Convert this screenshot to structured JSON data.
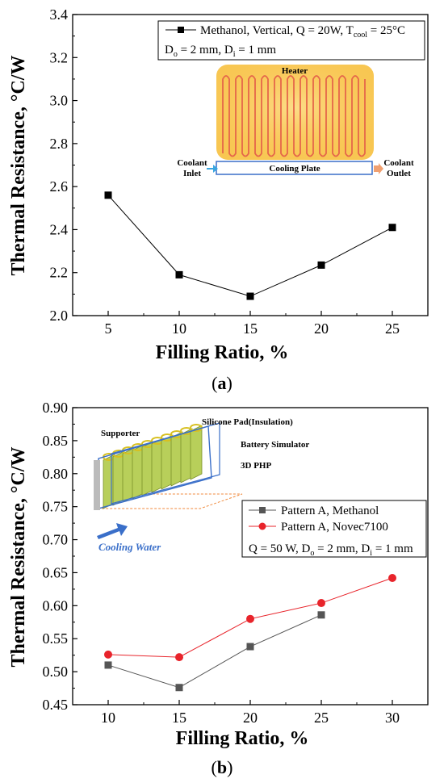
{
  "charts": [
    {
      "caption": "(a)",
      "inset": {
        "heater_label": "Heater",
        "cooling_plate_label": "Cooling Plate",
        "coolant_inlet": [
          "Coolant",
          "Inlet"
        ],
        "coolant_outlet": [
          "Coolant",
          "Outlet"
        ]
      },
      "legend_lines": [
        {
          "text": "Methanol, Vertical, Q = 20W, T",
          "sub": "cool",
          "tail": " = 25°C"
        },
        {
          "text": "D",
          "sub": "o",
          "tail": " = 2 mm, D",
          "sub2": "i",
          "tail2": " = 1 mm"
        }
      ]
    },
    {
      "caption": "(b)",
      "inset": {
        "supporter": "Supporter",
        "silicone": "Silicone  Pad(Insulation)",
        "battery": "Battery Simulator",
        "php": "3D PHP",
        "cooling_water": "Cooling Water"
      },
      "legend_note": {
        "text": "Q = 50 W, D",
        "sub": "o",
        "tail": " = 2 mm, D",
        "sub2": "i",
        "tail2": " = 1 mm"
      }
    }
  ],
  "chart_data": [
    {
      "type": "line",
      "xlabel": "Filling Ratio, %",
      "ylabel": "Thermal Resistance, °C/W",
      "xlim": [
        2.5,
        27.5
      ],
      "ylim": [
        2.0,
        3.4
      ],
      "xticks": [
        5,
        10,
        15,
        20,
        25
      ],
      "yticks": [
        2.0,
        2.2,
        2.4,
        2.6,
        2.8,
        3.0,
        3.2,
        3.4
      ],
      "ytick_decimals": 1,
      "series": [
        {
          "name": "Methanol, Vertical, Q = 20W, Tcool = 25°C",
          "marker": "square",
          "color": "#000000",
          "x": [
            5,
            10,
            15,
            20,
            25
          ],
          "y": [
            2.56,
            2.19,
            2.09,
            2.235,
            2.41
          ]
        }
      ],
      "legend": "top-right"
    },
    {
      "type": "line",
      "xlabel": "Filling Ratio, %",
      "ylabel": "Thermal Resistance, °C/W",
      "xlim": [
        7.5,
        32.5
      ],
      "ylim": [
        0.45,
        0.9
      ],
      "xticks": [
        10,
        15,
        20,
        25,
        30
      ],
      "yticks": [
        0.45,
        0.5,
        0.55,
        0.6,
        0.65,
        0.7,
        0.75,
        0.8,
        0.85,
        0.9
      ],
      "ytick_decimals": 2,
      "series": [
        {
          "name": "Pattern A, Methanol",
          "marker": "square",
          "color": "#555555",
          "x": [
            10,
            15,
            20,
            25
          ],
          "y": [
            0.51,
            0.476,
            0.538,
            0.586
          ]
        },
        {
          "name": "Pattern A, Novec7100",
          "marker": "circle",
          "color": "#e8242b",
          "x": [
            10,
            15,
            20,
            25,
            30
          ],
          "y": [
            0.526,
            0.522,
            0.58,
            0.604,
            0.642
          ]
        }
      ],
      "legend": "right"
    }
  ]
}
